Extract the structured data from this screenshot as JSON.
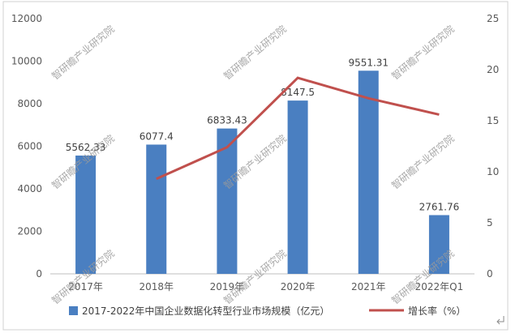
{
  "chart_data": {
    "type": "bar",
    "categories": [
      "2017年",
      "2018年",
      "2019年",
      "2020年",
      "2021年",
      "2022年Q1"
    ],
    "series": [
      {
        "name": "2017-2022年中国企业数据化转型行业市场规模（亿元）",
        "kind": "bar",
        "axis": "left",
        "color": "#4a7fc1",
        "values": [
          5562.33,
          6077.4,
          6833.43,
          8147.5,
          9551.31,
          2761.76
        ],
        "labels": [
          "5562.33",
          "6077.4",
          "6833.43",
          "8147.5",
          "9551.31",
          "2761.76"
        ]
      },
      {
        "name": "增长率（%）",
        "kind": "line",
        "axis": "right",
        "color": "#c0504d",
        "values": [
          null,
          9.3,
          12.4,
          19.2,
          17.2,
          15.6
        ]
      }
    ],
    "y_left": {
      "min": 0,
      "max": 12000,
      "ticks": [
        "0",
        "2000",
        "4000",
        "6000",
        "8000",
        "10000",
        "12000"
      ]
    },
    "y_right": {
      "min": 0,
      "max": 25,
      "ticks": [
        "0",
        "5",
        "10",
        "15",
        "20",
        "25"
      ]
    },
    "grid": false,
    "legend_position": "bottom",
    "watermark": "智研瞻产业研究院"
  }
}
